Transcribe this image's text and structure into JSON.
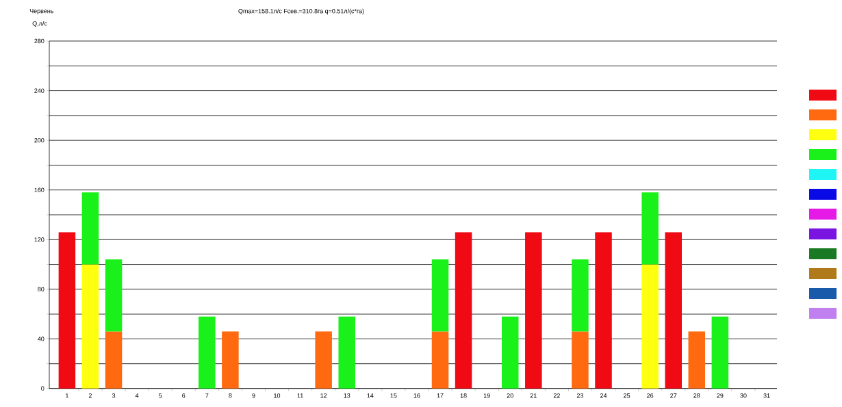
{
  "chart_data": {
    "type": "bar",
    "stacked": true,
    "title": "Червень",
    "subtitle": "Qmax=158.1л/с  Fсев.=310.8га  q=0.51л/(с*га)",
    "ylabel": "Q,л/с",
    "categories": [
      "1",
      "2",
      "3",
      "4",
      "5",
      "6",
      "7",
      "8",
      "9",
      "10",
      "11",
      "12",
      "13",
      "14",
      "15",
      "16",
      "17",
      "18",
      "19",
      "20",
      "21",
      "22",
      "23",
      "24",
      "25",
      "26",
      "27",
      "28",
      "29",
      "30",
      "31"
    ],
    "series": [
      {
        "color": "#f00a14",
        "values": [
          126,
          null,
          null,
          null,
          null,
          null,
          null,
          null,
          null,
          null,
          null,
          null,
          null,
          null,
          null,
          null,
          null,
          126,
          null,
          null,
          126,
          null,
          null,
          126,
          null,
          null,
          126,
          null,
          null,
          null,
          null
        ]
      },
      {
        "color": "#ff6a10",
        "values": [
          null,
          null,
          46,
          null,
          null,
          null,
          null,
          46,
          null,
          null,
          null,
          46,
          null,
          null,
          null,
          null,
          46,
          null,
          null,
          null,
          null,
          null,
          46,
          null,
          null,
          null,
          null,
          46,
          null,
          null,
          null
        ]
      },
      {
        "color": "#ffff10",
        "values": [
          null,
          100,
          null,
          null,
          null,
          null,
          null,
          null,
          null,
          null,
          null,
          null,
          null,
          null,
          null,
          null,
          null,
          null,
          null,
          null,
          null,
          null,
          null,
          null,
          null,
          100,
          null,
          null,
          null,
          null,
          null
        ]
      },
      {
        "color": "#1af01a",
        "values": [
          null,
          58,
          58,
          null,
          null,
          null,
          58,
          null,
          null,
          null,
          null,
          null,
          58,
          null,
          null,
          null,
          58,
          null,
          null,
          58,
          null,
          null,
          58,
          null,
          null,
          58,
          null,
          null,
          58,
          null,
          null
        ]
      },
      {
        "color": "#1ff5f5",
        "values": [
          null,
          null,
          null,
          null,
          null,
          null,
          null,
          null,
          null,
          null,
          null,
          null,
          null,
          null,
          null,
          null,
          null,
          null,
          null,
          null,
          null,
          null,
          null,
          null,
          null,
          null,
          null,
          null,
          null,
          null,
          null
        ]
      },
      {
        "color": "#0a0ae6",
        "values": [
          null,
          null,
          null,
          null,
          null,
          null,
          null,
          null,
          null,
          null,
          null,
          null,
          null,
          null,
          null,
          null,
          null,
          null,
          null,
          null,
          null,
          null,
          null,
          null,
          null,
          null,
          null,
          null,
          null,
          null,
          null
        ]
      },
      {
        "color": "#e61ae6",
        "values": [
          null,
          null,
          null,
          null,
          null,
          null,
          null,
          null,
          null,
          null,
          null,
          null,
          null,
          null,
          null,
          null,
          null,
          null,
          null,
          null,
          null,
          null,
          null,
          null,
          null,
          null,
          null,
          null,
          null,
          null,
          null
        ]
      },
      {
        "color": "#7a14e0",
        "values": [
          null,
          null,
          null,
          null,
          null,
          null,
          null,
          null,
          null,
          null,
          null,
          null,
          null,
          null,
          null,
          null,
          null,
          null,
          null,
          null,
          null,
          null,
          null,
          null,
          null,
          null,
          null,
          null,
          null,
          null,
          null
        ]
      },
      {
        "color": "#1a7a24",
        "values": [
          null,
          null,
          null,
          null,
          null,
          null,
          null,
          null,
          null,
          null,
          null,
          null,
          null,
          null,
          null,
          null,
          null,
          null,
          null,
          null,
          null,
          null,
          null,
          null,
          null,
          null,
          null,
          null,
          null,
          null,
          null
        ]
      },
      {
        "color": "#b07a1a",
        "values": [
          null,
          null,
          null,
          null,
          null,
          null,
          null,
          null,
          null,
          null,
          null,
          null,
          null,
          null,
          null,
          null,
          null,
          null,
          null,
          null,
          null,
          null,
          null,
          null,
          null,
          null,
          null,
          null,
          null,
          null,
          null
        ]
      },
      {
        "color": "#1a5aaa",
        "values": [
          null,
          null,
          null,
          null,
          null,
          null,
          null,
          null,
          null,
          null,
          null,
          null,
          null,
          null,
          null,
          null,
          null,
          null,
          null,
          null,
          null,
          null,
          null,
          null,
          null,
          null,
          null,
          null,
          null,
          null,
          null
        ]
      },
      {
        "color": "#c080f0",
        "values": [
          null,
          null,
          null,
          null,
          null,
          null,
          null,
          null,
          null,
          null,
          null,
          null,
          null,
          null,
          null,
          null,
          null,
          null,
          null,
          null,
          null,
          null,
          null,
          null,
          null,
          null,
          null,
          null,
          null,
          null,
          null
        ]
      }
    ],
    "ylim": [
      0,
      280
    ],
    "yticks": [
      0,
      {
        "value": 20,
        "label": null
      },
      40,
      {
        "value": 60,
        "label": null
      },
      80,
      {
        "value": 100,
        "label": null
      },
      120,
      {
        "value": 140,
        "label": null
      },
      160,
      {
        "value": 180,
        "label": null
      },
      200,
      {
        "value": 220,
        "label": null
      },
      240,
      {
        "value": 260,
        "label": null
      },
      280
    ],
    "grid": "y"
  }
}
